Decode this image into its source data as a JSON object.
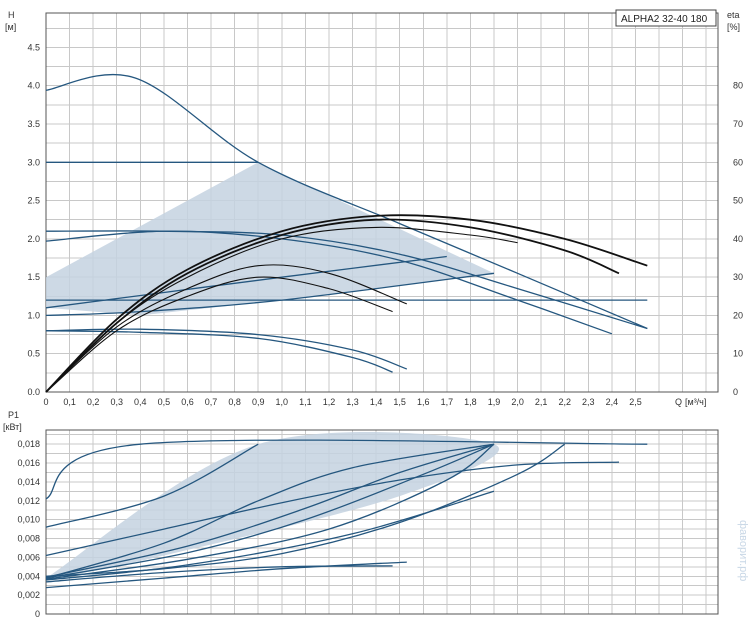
{
  "chart_data": [
    {
      "type": "line",
      "title": "ALPHA2 32-40 180",
      "ylabel": "H",
      "yunit": "[м]",
      "y2label": "eta",
      "y2unit": "[%]",
      "xlabel": "Q",
      "xunit": "[м³/ч]",
      "xlim": [
        0,
        2.85
      ],
      "ylim": [
        0,
        4.95
      ],
      "y2lim": [
        0,
        99
      ],
      "x_ticks": [
        "0",
        "0,1",
        "0,2",
        "0,3",
        "0,4",
        "0,5",
        "0,6",
        "0,7",
        "0,8",
        "0,9",
        "1,0",
        "1,1",
        "1,2",
        "1,3",
        "1,4",
        "1,5",
        "1,6",
        "1,7",
        "1,8",
        "1,9",
        "2,0",
        "2,1",
        "2,2",
        "2,3",
        "2,4",
        "2,5"
      ],
      "y_ticks": [
        "0.0",
        "0.5",
        "1.0",
        "1.5",
        "2.0",
        "2.5",
        "3.0",
        "3.5",
        "4.0",
        "4.5"
      ],
      "y2_ticks": [
        "0",
        "10",
        "20",
        "30",
        "40",
        "50",
        "60",
        "70",
        "80"
      ],
      "shaded_region": [
        [
          0,
          1.5
        ],
        [
          0.9,
          3.0
        ],
        [
          1.9,
          1.55
        ],
        [
          1.0,
          1.2
        ],
        [
          0.4,
          1.0
        ],
        [
          0,
          1.1
        ]
      ],
      "head_curves": [
        {
          "x": [
            0,
            0.38,
            0.9,
            1.5,
            2.0,
            2.55
          ],
          "y": [
            3.94,
            4.1,
            3.0,
            2.2,
            1.55,
            0.83
          ]
        },
        {
          "x": [
            0,
            0.9
          ],
          "y": [
            3.0,
            3.0
          ]
        },
        {
          "x": [
            0,
            0.5,
            1.0,
            1.5,
            2.0,
            2.55
          ],
          "y": [
            2.1,
            2.1,
            2.05,
            1.8,
            1.35,
            0.83
          ]
        },
        {
          "x": [
            0,
            0.5,
            1.0,
            1.5,
            2.0,
            2.4
          ],
          "y": [
            1.97,
            2.1,
            2.0,
            1.72,
            1.2,
            0.76
          ]
        },
        {
          "x": [
            0,
            2.55
          ],
          "y": [
            1.2,
            1.2
          ]
        },
        {
          "x": [
            0,
            0.4,
            1.0,
            1.9
          ],
          "y": [
            1.0,
            1.05,
            1.2,
            1.55
          ]
        },
        {
          "x": [
            0,
            0.5,
            1.0,
            1.7
          ],
          "y": [
            1.1,
            1.3,
            1.5,
            1.77
          ]
        },
        {
          "x": [
            0,
            0.4,
            0.9,
            1.3,
            1.53
          ],
          "y": [
            0.8,
            0.82,
            0.75,
            0.55,
            0.3
          ]
        },
        {
          "x": [
            0,
            0.4,
            0.9,
            1.3,
            1.47
          ],
          "y": [
            0.8,
            0.78,
            0.7,
            0.45,
            0.26
          ]
        }
      ],
      "efficiency_curves": [
        {
          "x": [
            0,
            0.3,
            0.6,
            1.0,
            1.4,
            1.8,
            2.2,
            2.55
          ],
          "y": [
            0,
            19,
            32,
            42,
            46,
            45,
            40,
            33
          ]
        },
        {
          "x": [
            0,
            0.3,
            0.6,
            1.0,
            1.4,
            1.8,
            2.2,
            2.43
          ],
          "y": [
            0,
            18,
            31,
            41,
            45,
            43,
            37,
            31
          ]
        },
        {
          "x": [
            0,
            0.3,
            0.6,
            1.0,
            1.4,
            1.8,
            2.0
          ],
          "y": [
            0,
            18,
            30,
            40,
            43,
            41,
            39
          ]
        },
        {
          "x": [
            0,
            0.3,
            0.6,
            0.9,
            1.2,
            1.53
          ],
          "y": [
            0,
            17,
            27,
            33,
            31,
            23
          ]
        },
        {
          "x": [
            0,
            0.3,
            0.6,
            0.9,
            1.2,
            1.47
          ],
          "y": [
            0,
            16,
            25,
            30,
            27,
            21
          ]
        }
      ]
    },
    {
      "type": "line",
      "ylabel": "P1",
      "yunit": "[кВт]",
      "xlim": [
        0,
        2.85
      ],
      "ylim": [
        0,
        0.0195
      ],
      "y_ticks": [
        "0",
        "0,002",
        "0,004",
        "0,006",
        "0,008",
        "0,010",
        "0,012",
        "0,014",
        "0,016",
        "0,018"
      ],
      "x_ticks": [
        "0",
        "0,1",
        "0,2",
        "0,3",
        "0,4",
        "0,5",
        "0,6",
        "0,7",
        "0,8",
        "0,9",
        "1,0",
        "1,1",
        "1,2",
        "1,3",
        "1,4",
        "1,5",
        "1,6",
        "1,7",
        "1,8",
        "1,9",
        "2,0",
        "2,1",
        "2,2",
        "2,3",
        "2,4",
        "2,5"
      ],
      "shaded_region": [
        [
          0,
          0.0038
        ],
        [
          0.9,
          0.018
        ],
        [
          1.9,
          0.018
        ],
        [
          1.5,
          0.0125
        ],
        [
          0.5,
          0.0062
        ],
        [
          0,
          0.0036
        ]
      ],
      "power_curves": [
        {
          "x": [
            0,
            0.4,
            2.55
          ],
          "y": [
            0.0122,
            0.018,
            0.018
          ]
        },
        {
          "x": [
            0,
            0.5,
            0.9
          ],
          "y": [
            0.0092,
            0.0125,
            0.018
          ]
        },
        {
          "x": [
            0,
            0.5,
            0.9,
            1.3,
            1.9
          ],
          "y": [
            0.0038,
            0.0075,
            0.012,
            0.0155,
            0.018
          ]
        },
        {
          "x": [
            0,
            0.6,
            1.1,
            1.5,
            1.9
          ],
          "y": [
            0.0039,
            0.0072,
            0.0112,
            0.015,
            0.018
          ]
        },
        {
          "x": [
            0,
            0.6,
            1.1,
            1.6,
            1.9
          ],
          "y": [
            0.0038,
            0.0065,
            0.01,
            0.0148,
            0.018
          ]
        },
        {
          "x": [
            0,
            0.6,
            1.2,
            1.7,
            1.9
          ],
          "y": [
            0.0037,
            0.0058,
            0.009,
            0.0142,
            0.018
          ]
        },
        {
          "x": [
            0,
            0.6,
            1.3,
            1.9
          ],
          "y": [
            0.0036,
            0.0052,
            0.0085,
            0.013
          ]
        },
        {
          "x": [
            0,
            0.5,
            1.0,
            1.5,
            2.0,
            2.43
          ],
          "y": [
            0.0062,
            0.009,
            0.0118,
            0.0142,
            0.0158,
            0.0161
          ]
        },
        {
          "x": [
            0,
            0.5,
            1.0,
            1.5,
            2.0,
            2.2
          ],
          "y": [
            0.004,
            0.0048,
            0.0064,
            0.0097,
            0.0148,
            0.018
          ]
        },
        {
          "x": [
            0,
            0.5,
            1.0,
            1.53
          ],
          "y": [
            0.0028,
            0.0038,
            0.0048,
            0.0055
          ]
        },
        {
          "x": [
            0,
            0.5,
            1.0,
            1.47
          ],
          "y": [
            0.0034,
            0.0044,
            0.005,
            0.0051
          ]
        }
      ]
    }
  ],
  "watermark": "фаворит.рф"
}
